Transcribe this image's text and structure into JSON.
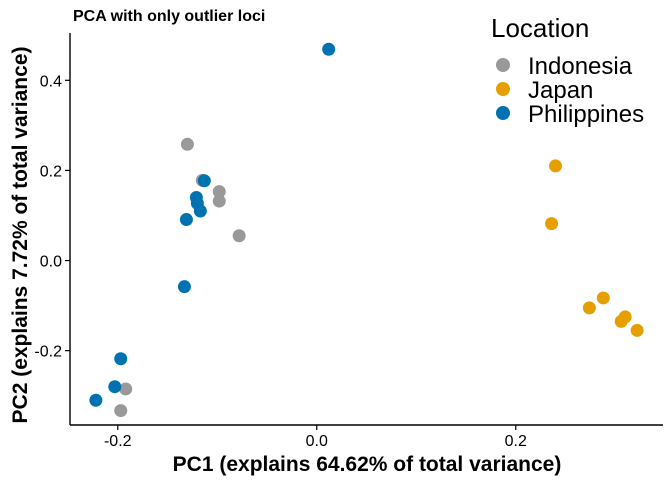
{
  "chart_data": {
    "type": "scatter",
    "title": "PCA with only outlier loci",
    "xlabel": "PC1 (explains 64.62% of total variance)",
    "ylabel": "PC2 (explains 7.72% of total variance)",
    "xlim": [
      -0.248,
      0.348
    ],
    "ylim": [
      -0.365,
      0.505
    ],
    "xticks": [
      {
        "value": -0.2,
        "label": "-0.2"
      },
      {
        "value": 0.0,
        "label": "0.0"
      },
      {
        "value": 0.2,
        "label": "0.2"
      }
    ],
    "yticks": [
      {
        "value": -0.2,
        "label": "-0.2"
      },
      {
        "value": 0.0,
        "label": "0.0"
      },
      {
        "value": 0.2,
        "label": "0.2"
      },
      {
        "value": 0.4,
        "label": "0.4"
      }
    ],
    "grid": false,
    "legend_title": "Location",
    "legend_position": "top-right",
    "series": [
      {
        "name": "Indonesia",
        "color": "#999999",
        "points": [
          {
            "x": -0.13,
            "y": 0.258
          },
          {
            "x": -0.115,
            "y": 0.178
          },
          {
            "x": -0.098,
            "y": 0.153
          },
          {
            "x": -0.098,
            "y": 0.132
          },
          {
            "x": -0.078,
            "y": 0.055
          },
          {
            "x": -0.192,
            "y": -0.285
          },
          {
            "x": -0.197,
            "y": -0.333
          }
        ]
      },
      {
        "name": "Japan",
        "color": "#E69F00",
        "points": [
          {
            "x": 0.24,
            "y": 0.21
          },
          {
            "x": 0.236,
            "y": 0.082
          },
          {
            "x": 0.288,
            "y": -0.083
          },
          {
            "x": 0.274,
            "y": -0.105
          },
          {
            "x": 0.31,
            "y": -0.125
          },
          {
            "x": 0.306,
            "y": -0.135
          },
          {
            "x": 0.322,
            "y": -0.155
          }
        ]
      },
      {
        "name": "Philippines",
        "color": "#0072B2",
        "points": [
          {
            "x": 0.012,
            "y": 0.469
          },
          {
            "x": -0.113,
            "y": 0.177
          },
          {
            "x": -0.121,
            "y": 0.14
          },
          {
            "x": -0.12,
            "y": 0.127
          },
          {
            "x": -0.117,
            "y": 0.11
          },
          {
            "x": -0.131,
            "y": 0.091
          },
          {
            "x": -0.133,
            "y": -0.058
          },
          {
            "x": -0.197,
            "y": -0.218
          },
          {
            "x": -0.203,
            "y": -0.28
          },
          {
            "x": -0.222,
            "y": -0.31
          }
        ]
      }
    ]
  }
}
